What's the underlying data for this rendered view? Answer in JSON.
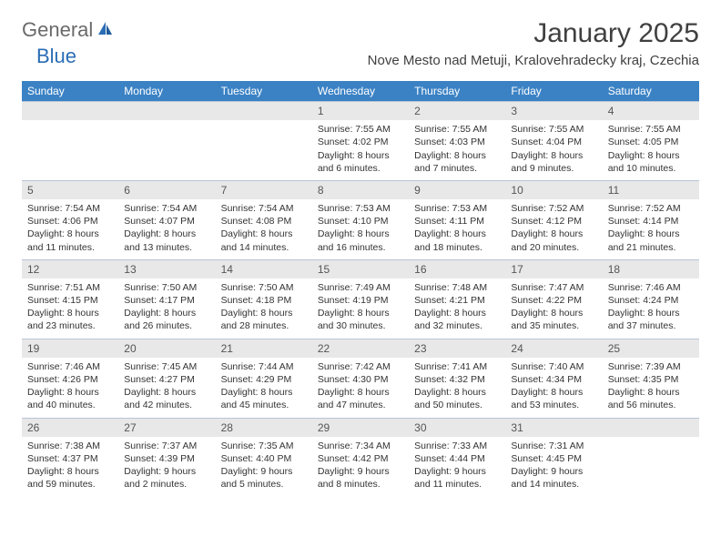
{
  "logo": {
    "general": "General",
    "blue": "Blue"
  },
  "title": "January 2025",
  "location": "Nove Mesto nad Metuji, Kralovehradecky kraj, Czechia",
  "weekdays": [
    "Sunday",
    "Monday",
    "Tuesday",
    "Wednesday",
    "Thursday",
    "Friday",
    "Saturday"
  ],
  "colors": {
    "header_bg": "#3b82c4",
    "header_text": "#ffffff",
    "daynum_bg": "#e8e8e8",
    "row_border": "#b8c5d6",
    "text": "#333333",
    "title": "#404040",
    "logo_blue": "#2a6db5",
    "logo_gray": "#6a6a6a"
  },
  "layout": {
    "type": "calendar",
    "columns": 7,
    "rows": 5,
    "day_fontsize": 10.5,
    "weekday_fontsize": 12,
    "title_fontsize": 30,
    "location_fontsize": 15
  },
  "days": [
    {
      "num": "",
      "sunrise": "",
      "sunset": "",
      "daylight": ""
    },
    {
      "num": "",
      "sunrise": "",
      "sunset": "",
      "daylight": ""
    },
    {
      "num": "",
      "sunrise": "",
      "sunset": "",
      "daylight": ""
    },
    {
      "num": "1",
      "sunrise": "Sunrise: 7:55 AM",
      "sunset": "Sunset: 4:02 PM",
      "daylight": "Daylight: 8 hours and 6 minutes."
    },
    {
      "num": "2",
      "sunrise": "Sunrise: 7:55 AM",
      "sunset": "Sunset: 4:03 PM",
      "daylight": "Daylight: 8 hours and 7 minutes."
    },
    {
      "num": "3",
      "sunrise": "Sunrise: 7:55 AM",
      "sunset": "Sunset: 4:04 PM",
      "daylight": "Daylight: 8 hours and 9 minutes."
    },
    {
      "num": "4",
      "sunrise": "Sunrise: 7:55 AM",
      "sunset": "Sunset: 4:05 PM",
      "daylight": "Daylight: 8 hours and 10 minutes."
    },
    {
      "num": "5",
      "sunrise": "Sunrise: 7:54 AM",
      "sunset": "Sunset: 4:06 PM",
      "daylight": "Daylight: 8 hours and 11 minutes."
    },
    {
      "num": "6",
      "sunrise": "Sunrise: 7:54 AM",
      "sunset": "Sunset: 4:07 PM",
      "daylight": "Daylight: 8 hours and 13 minutes."
    },
    {
      "num": "7",
      "sunrise": "Sunrise: 7:54 AM",
      "sunset": "Sunset: 4:08 PM",
      "daylight": "Daylight: 8 hours and 14 minutes."
    },
    {
      "num": "8",
      "sunrise": "Sunrise: 7:53 AM",
      "sunset": "Sunset: 4:10 PM",
      "daylight": "Daylight: 8 hours and 16 minutes."
    },
    {
      "num": "9",
      "sunrise": "Sunrise: 7:53 AM",
      "sunset": "Sunset: 4:11 PM",
      "daylight": "Daylight: 8 hours and 18 minutes."
    },
    {
      "num": "10",
      "sunrise": "Sunrise: 7:52 AM",
      "sunset": "Sunset: 4:12 PM",
      "daylight": "Daylight: 8 hours and 20 minutes."
    },
    {
      "num": "11",
      "sunrise": "Sunrise: 7:52 AM",
      "sunset": "Sunset: 4:14 PM",
      "daylight": "Daylight: 8 hours and 21 minutes."
    },
    {
      "num": "12",
      "sunrise": "Sunrise: 7:51 AM",
      "sunset": "Sunset: 4:15 PM",
      "daylight": "Daylight: 8 hours and 23 minutes."
    },
    {
      "num": "13",
      "sunrise": "Sunrise: 7:50 AM",
      "sunset": "Sunset: 4:17 PM",
      "daylight": "Daylight: 8 hours and 26 minutes."
    },
    {
      "num": "14",
      "sunrise": "Sunrise: 7:50 AM",
      "sunset": "Sunset: 4:18 PM",
      "daylight": "Daylight: 8 hours and 28 minutes."
    },
    {
      "num": "15",
      "sunrise": "Sunrise: 7:49 AM",
      "sunset": "Sunset: 4:19 PM",
      "daylight": "Daylight: 8 hours and 30 minutes."
    },
    {
      "num": "16",
      "sunrise": "Sunrise: 7:48 AM",
      "sunset": "Sunset: 4:21 PM",
      "daylight": "Daylight: 8 hours and 32 minutes."
    },
    {
      "num": "17",
      "sunrise": "Sunrise: 7:47 AM",
      "sunset": "Sunset: 4:22 PM",
      "daylight": "Daylight: 8 hours and 35 minutes."
    },
    {
      "num": "18",
      "sunrise": "Sunrise: 7:46 AM",
      "sunset": "Sunset: 4:24 PM",
      "daylight": "Daylight: 8 hours and 37 minutes."
    },
    {
      "num": "19",
      "sunrise": "Sunrise: 7:46 AM",
      "sunset": "Sunset: 4:26 PM",
      "daylight": "Daylight: 8 hours and 40 minutes."
    },
    {
      "num": "20",
      "sunrise": "Sunrise: 7:45 AM",
      "sunset": "Sunset: 4:27 PM",
      "daylight": "Daylight: 8 hours and 42 minutes."
    },
    {
      "num": "21",
      "sunrise": "Sunrise: 7:44 AM",
      "sunset": "Sunset: 4:29 PM",
      "daylight": "Daylight: 8 hours and 45 minutes."
    },
    {
      "num": "22",
      "sunrise": "Sunrise: 7:42 AM",
      "sunset": "Sunset: 4:30 PM",
      "daylight": "Daylight: 8 hours and 47 minutes."
    },
    {
      "num": "23",
      "sunrise": "Sunrise: 7:41 AM",
      "sunset": "Sunset: 4:32 PM",
      "daylight": "Daylight: 8 hours and 50 minutes."
    },
    {
      "num": "24",
      "sunrise": "Sunrise: 7:40 AM",
      "sunset": "Sunset: 4:34 PM",
      "daylight": "Daylight: 8 hours and 53 minutes."
    },
    {
      "num": "25",
      "sunrise": "Sunrise: 7:39 AM",
      "sunset": "Sunset: 4:35 PM",
      "daylight": "Daylight: 8 hours and 56 minutes."
    },
    {
      "num": "26",
      "sunrise": "Sunrise: 7:38 AM",
      "sunset": "Sunset: 4:37 PM",
      "daylight": "Daylight: 8 hours and 59 minutes."
    },
    {
      "num": "27",
      "sunrise": "Sunrise: 7:37 AM",
      "sunset": "Sunset: 4:39 PM",
      "daylight": "Daylight: 9 hours and 2 minutes."
    },
    {
      "num": "28",
      "sunrise": "Sunrise: 7:35 AM",
      "sunset": "Sunset: 4:40 PM",
      "daylight": "Daylight: 9 hours and 5 minutes."
    },
    {
      "num": "29",
      "sunrise": "Sunrise: 7:34 AM",
      "sunset": "Sunset: 4:42 PM",
      "daylight": "Daylight: 9 hours and 8 minutes."
    },
    {
      "num": "30",
      "sunrise": "Sunrise: 7:33 AM",
      "sunset": "Sunset: 4:44 PM",
      "daylight": "Daylight: 9 hours and 11 minutes."
    },
    {
      "num": "31",
      "sunrise": "Sunrise: 7:31 AM",
      "sunset": "Sunset: 4:45 PM",
      "daylight": "Daylight: 9 hours and 14 minutes."
    },
    {
      "num": "",
      "sunrise": "",
      "sunset": "",
      "daylight": ""
    }
  ]
}
